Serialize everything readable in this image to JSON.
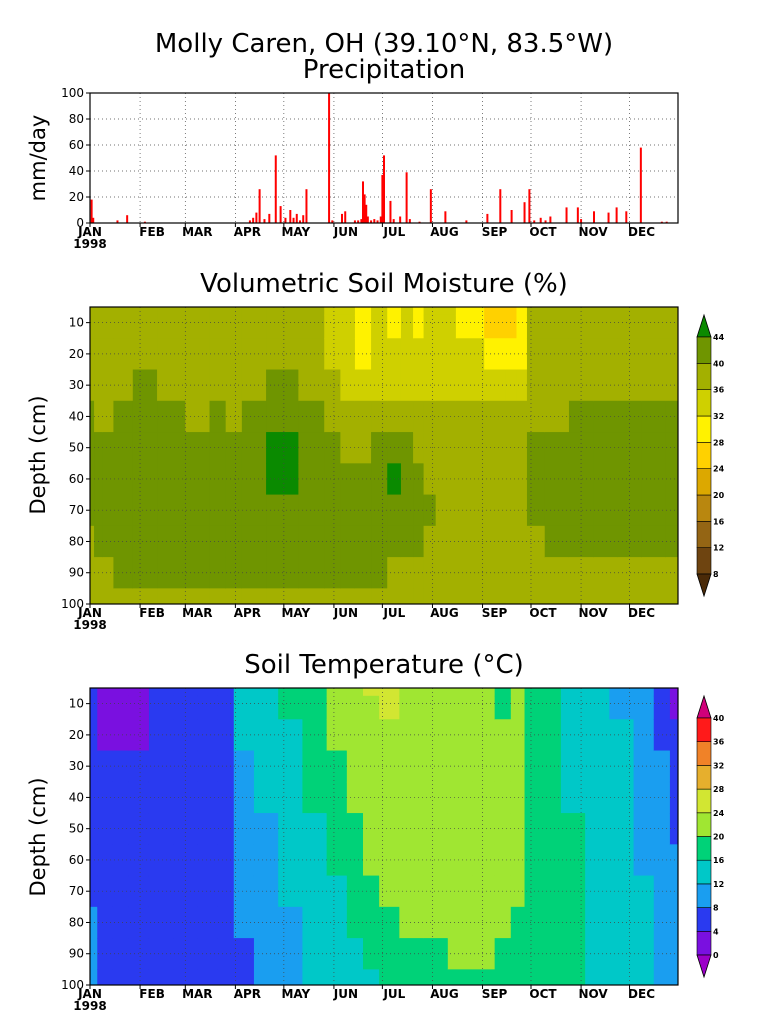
{
  "figure": {
    "title_line1": "Molly Caren, OH (39.10°N, 83.5°W)",
    "title_line2": "Precipitation"
  },
  "months": [
    "JAN",
    "FEB",
    "MAR",
    "APR",
    "MAY",
    "JUN",
    "JUL",
    "AUG",
    "SEP",
    "OCT",
    "NOV",
    "DEC"
  ],
  "year_label": "1998",
  "chart_data": [
    {
      "type": "bar",
      "title": "Precipitation",
      "ylabel": "mm/day",
      "ylim": [
        0,
        100
      ],
      "yticks": [
        0,
        20,
        40,
        60,
        80,
        100
      ],
      "x_unit": "day_of_year_1998",
      "xlim": [
        1,
        365
      ],
      "grid": true,
      "color": "#ff0000",
      "x": [
        2,
        3,
        18,
        24,
        35,
        100,
        102,
        104,
        106,
        109,
        112,
        116,
        119,
        122,
        125,
        127,
        129,
        131,
        133,
        135,
        149,
        151,
        157,
        159,
        165,
        167,
        169,
        170,
        171,
        172,
        173,
        175,
        177,
        179,
        181,
        182,
        183,
        187,
        189,
        193,
        197,
        199,
        205,
        212,
        221,
        234,
        247,
        255,
        262,
        270,
        273,
        276,
        280,
        283,
        286,
        296,
        303,
        305,
        313,
        322,
        327,
        333,
        342,
        355,
        358
      ],
      "values": [
        18,
        4,
        2,
        6,
        1,
        2,
        4,
        8,
        26,
        3,
        7,
        52,
        13,
        4,
        10,
        4,
        7,
        2,
        6,
        26,
        100,
        2,
        7,
        9,
        2,
        2,
        3,
        32,
        22,
        14,
        5,
        2,
        3,
        2,
        5,
        37,
        52,
        17,
        3,
        5,
        39,
        3,
        1,
        26,
        9,
        2,
        7,
        26,
        10,
        16,
        26,
        2,
        4,
        2,
        5,
        12,
        12,
        3,
        9,
        8,
        12,
        9,
        58,
        1,
        1
      ]
    },
    {
      "type": "heatmap",
      "title": "Volumetric Soil Moisture (%)",
      "ylabel": "Depth (cm)",
      "ylim": [
        100,
        5
      ],
      "yticks": [
        10,
        20,
        30,
        40,
        50,
        60,
        70,
        80,
        90,
        100
      ],
      "xlim": [
        1,
        365
      ],
      "levels": [
        8,
        12,
        16,
        20,
        24,
        28,
        32,
        36,
        40,
        44
      ],
      "colors": [
        "#4a2a08",
        "#6e4410",
        "#946514",
        "#b9870f",
        "#dca800",
        "#ffd100",
        "#fff200",
        "#cfd000",
        "#a3b000",
        "#6f9500",
        "#0a8a00"
      ],
      "x_days": [
        1,
        6,
        11,
        20,
        35,
        50,
        70,
        80,
        90,
        100,
        120,
        140,
        152,
        160,
        170,
        180,
        190,
        197,
        205,
        210,
        220,
        235,
        255,
        262,
        268,
        275,
        290,
        305,
        320,
        335,
        350,
        365
      ],
      "depths": [
        5,
        10,
        20,
        30,
        40,
        50,
        60,
        70,
        80,
        90,
        100
      ],
      "values": [
        [
          37,
          37,
          37,
          36,
          40,
          40,
          40,
          40,
          38,
          38,
          38
        ],
        [
          37,
          37,
          37,
          37,
          38,
          41,
          41,
          41,
          41,
          38,
          38
        ],
        [
          36,
          38,
          38,
          38,
          38,
          41,
          41,
          41,
          41,
          38,
          38
        ],
        [
          38,
          38,
          38,
          38,
          41,
          41,
          41,
          41,
          41,
          41,
          38
        ],
        [
          38,
          38,
          38,
          41,
          41,
          41,
          41,
          41,
          41,
          41,
          38
        ],
        [
          38,
          38,
          38,
          38,
          41,
          41,
          41,
          41,
          41,
          41,
          38
        ],
        [
          38,
          38,
          38,
          38,
          38,
          41,
          41,
          41,
          41,
          41,
          38
        ],
        [
          38,
          38,
          38,
          38,
          41,
          41,
          41,
          41,
          41,
          41,
          38
        ],
        [
          38,
          38,
          38,
          38,
          38,
          41,
          41,
          41,
          41,
          41,
          38
        ],
        [
          38,
          38,
          38,
          38,
          41,
          42,
          42,
          41,
          41,
          41,
          38
        ],
        [
          38,
          38,
          38,
          41,
          41,
          45,
          45,
          41,
          41,
          41,
          38
        ],
        [
          36,
          36,
          38,
          38,
          41,
          41,
          41,
          41,
          41,
          41,
          38
        ],
        [
          34,
          34,
          35,
          36,
          38,
          41,
          41,
          41,
          41,
          41,
          38
        ],
        [
          32,
          32,
          33,
          35,
          38,
          38,
          41,
          41,
          41,
          41,
          38
        ],
        [
          30,
          30,
          31,
          34,
          37,
          38,
          41,
          41,
          41,
          41,
          38
        ],
        [
          33,
          33,
          34,
          35,
          37,
          41,
          41,
          41,
          41,
          41,
          38
        ],
        [
          31,
          31,
          33,
          35,
          38,
          41,
          45,
          41,
          41,
          38,
          38
        ],
        [
          32,
          32,
          33,
          35,
          38,
          41,
          41,
          41,
          41,
          38,
          38
        ],
        [
          30,
          30,
          32,
          34,
          37,
          38,
          41,
          41,
          41,
          38,
          38
        ],
        [
          33,
          33,
          34,
          35,
          37,
          38,
          38,
          41,
          38,
          38,
          38
        ],
        [
          32,
          32,
          33,
          35,
          37,
          38,
          38,
          38,
          38,
          38,
          38
        ],
        [
          30,
          30,
          32,
          34,
          37,
          38,
          38,
          38,
          38,
          38,
          38
        ],
        [
          27,
          27,
          30,
          33,
          36,
          38,
          38,
          38,
          38,
          38,
          38
        ],
        [
          26,
          26,
          29,
          33,
          36,
          38,
          38,
          38,
          38,
          38,
          38
        ],
        [
          30,
          30,
          31,
          34,
          37,
          38,
          38,
          38,
          38,
          38,
          38
        ],
        [
          38,
          38,
          38,
          38,
          38,
          41,
          41,
          41,
          38,
          38,
          38
        ],
        [
          38,
          38,
          38,
          38,
          38,
          41,
          41,
          41,
          41,
          38,
          38
        ],
        [
          38,
          38,
          38,
          38,
          41,
          41,
          41,
          41,
          41,
          38,
          38
        ],
        [
          38,
          38,
          38,
          38,
          41,
          41,
          41,
          41,
          41,
          38,
          38
        ],
        [
          38,
          38,
          38,
          38,
          41,
          41,
          41,
          41,
          41,
          38,
          38
        ],
        [
          38,
          38,
          38,
          38,
          41,
          41,
          41,
          41,
          41,
          38,
          38
        ],
        [
          38,
          38,
          38,
          38,
          41,
          41,
          41,
          41,
          41,
          38,
          38
        ]
      ]
    },
    {
      "type": "heatmap",
      "title": "Soil Temperature (°C)",
      "ylabel": "Depth (cm)",
      "ylim": [
        100,
        5
      ],
      "yticks": [
        10,
        20,
        30,
        40,
        50,
        60,
        70,
        80,
        90,
        100
      ],
      "xlim": [
        1,
        365
      ],
      "levels": [
        0,
        4,
        8,
        12,
        16,
        20,
        24,
        28,
        32,
        36,
        40
      ],
      "colors": [
        "#9c00c8",
        "#7a10e0",
        "#2a3af0",
        "#1a9ef0",
        "#00c8c8",
        "#00d278",
        "#a0e632",
        "#d2e632",
        "#e6af2d",
        "#f08228",
        "#ff1a1a",
        "#d0007a"
      ],
      "x_days": [
        1,
        10,
        20,
        30,
        45,
        60,
        75,
        85,
        95,
        110,
        125,
        140,
        155,
        165,
        175,
        185,
        200,
        215,
        230,
        245,
        258,
        265,
        275,
        285,
        300,
        315,
        330,
        345,
        355,
        365
      ],
      "depths": [
        5,
        10,
        20,
        30,
        40,
        50,
        60,
        70,
        80,
        90,
        100
      ],
      "values": [
        [
          6,
          6,
          6,
          6,
          6,
          6,
          6,
          6,
          10,
          10,
          10
        ],
        [
          2,
          2,
          3,
          5,
          6,
          6,
          6,
          6,
          6,
          6,
          6
        ],
        [
          3,
          3,
          3,
          4,
          6,
          6,
          6,
          6,
          6,
          6,
          6
        ],
        [
          2,
          2,
          3,
          6,
          6,
          6,
          6,
          6,
          6,
          6,
          6
        ],
        [
          6,
          6,
          6,
          6,
          6,
          6,
          6,
          6,
          6,
          6,
          6
        ],
        [
          4,
          4,
          6,
          6,
          6,
          6,
          6,
          6,
          6,
          6,
          6
        ],
        [
          6,
          6,
          6,
          6,
          6,
          6,
          6,
          6,
          6,
          6,
          6
        ],
        [
          7,
          7,
          7,
          7,
          7,
          7,
          6,
          6,
          6,
          6,
          6
        ],
        [
          14,
          14,
          14,
          10,
          10,
          9,
          9,
          9,
          9,
          7,
          7
        ],
        [
          14,
          14,
          14,
          14,
          14,
          10,
          10,
          10,
          10,
          10,
          10
        ],
        [
          18,
          18,
          14,
          14,
          14,
          14,
          14,
          14,
          10,
          10,
          10
        ],
        [
          18,
          18,
          18,
          18,
          18,
          14,
          14,
          14,
          14,
          14,
          14
        ],
        [
          22,
          22,
          22,
          18,
          18,
          18,
          18,
          14,
          14,
          14,
          14
        ],
        [
          22,
          22,
          22,
          22,
          22,
          18,
          18,
          18,
          18,
          14,
          14
        ],
        [
          26,
          22,
          22,
          22,
          22,
          22,
          22,
          18,
          18,
          18,
          14
        ],
        [
          26,
          26,
          22,
          22,
          22,
          22,
          22,
          22,
          18,
          18,
          18
        ],
        [
          22,
          22,
          22,
          22,
          22,
          22,
          22,
          22,
          22,
          18,
          18
        ],
        [
          22,
          22,
          22,
          22,
          22,
          22,
          22,
          22,
          22,
          18,
          18
        ],
        [
          22,
          22,
          22,
          22,
          22,
          22,
          22,
          22,
          22,
          22,
          18
        ],
        [
          22,
          22,
          22,
          22,
          22,
          22,
          22,
          22,
          22,
          22,
          18
        ],
        [
          18,
          18,
          22,
          22,
          22,
          22,
          22,
          22,
          22,
          18,
          18
        ],
        [
          22,
          22,
          22,
          22,
          22,
          22,
          22,
          22,
          18,
          18,
          18
        ],
        [
          18,
          18,
          18,
          18,
          18,
          18,
          18,
          18,
          18,
          18,
          18
        ],
        [
          18,
          18,
          18,
          18,
          18,
          18,
          18,
          18,
          18,
          18,
          18
        ],
        [
          14,
          14,
          14,
          14,
          14,
          18,
          18,
          18,
          18,
          18,
          18
        ],
        [
          14,
          14,
          14,
          14,
          14,
          14,
          14,
          14,
          14,
          14,
          14
        ],
        [
          10,
          10,
          14,
          14,
          14,
          14,
          14,
          14,
          14,
          14,
          14
        ],
        [
          10,
          10,
          10,
          10,
          10,
          10,
          10,
          14,
          14,
          14,
          14
        ],
        [
          6,
          6,
          6,
          10,
          10,
          10,
          10,
          10,
          10,
          10,
          10
        ],
        [
          2,
          2,
          6,
          6,
          6,
          6,
          10,
          10,
          10,
          10,
          10
        ]
      ]
    }
  ]
}
